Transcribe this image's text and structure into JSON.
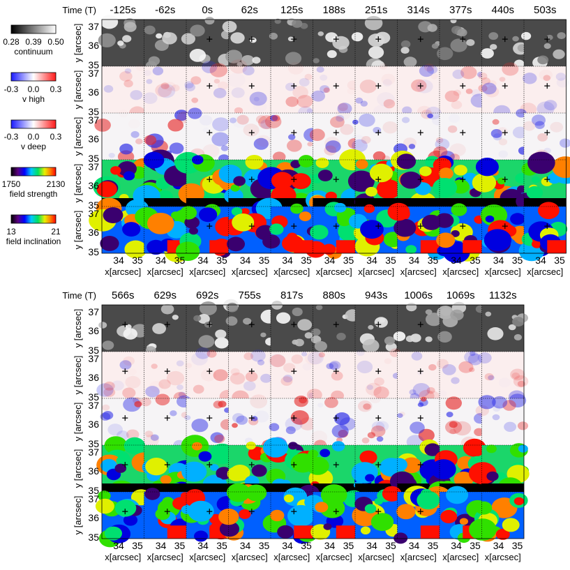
{
  "figure": {
    "time_axis_label": "Time (T)",
    "y_axis_label": "y [arcsec]",
    "x_axis_label": "x[arcsec]",
    "y_ticks": [
      "37",
      "36",
      "35"
    ],
    "x_ticks": [
      "34",
      "35"
    ],
    "rows": [
      "continuum",
      "v high",
      "v deep",
      "field strength",
      "field inclination"
    ],
    "colorbars": [
      {
        "label": "continuum",
        "ticks": [
          "0.28",
          "0.39",
          "0.50"
        ],
        "colormap": "gray"
      },
      {
        "label": "v high",
        "ticks": [
          "-0.3",
          "0.0",
          "0.3"
        ],
        "colormap": "bwr"
      },
      {
        "label": "v deep",
        "ticks": [
          "-0.3",
          "0.0",
          "0.3"
        ],
        "colormap": "bwr"
      },
      {
        "label": "field strength",
        "ticks": [
          "1750",
          "2130"
        ],
        "colormap": "rainbow"
      },
      {
        "label": "field inclination",
        "ticks": [
          "13",
          "21"
        ],
        "colormap": "rainbow"
      }
    ],
    "panels": [
      {
        "id": "top",
        "times": [
          "-125s",
          "-62s",
          "0s",
          "62s",
          "125s",
          "188s",
          "251s",
          "314s",
          "377s",
          "440s",
          "503s"
        ]
      },
      {
        "id": "bottom",
        "times": [
          "566s",
          "629s",
          "692s",
          "755s",
          "817s",
          "880s",
          "943s",
          "1006s",
          "1069s",
          "1132s"
        ]
      }
    ],
    "marker_columns": {
      "top": [
        false,
        false,
        true,
        true,
        true,
        true,
        true,
        true,
        true,
        true,
        true
      ],
      "bottom": [
        true,
        true,
        true,
        true,
        true,
        true,
        true,
        true,
        false,
        false
      ]
    },
    "colors": {
      "frame": "#000000",
      "grid_line": "#000000",
      "background": "#ffffff"
    }
  }
}
